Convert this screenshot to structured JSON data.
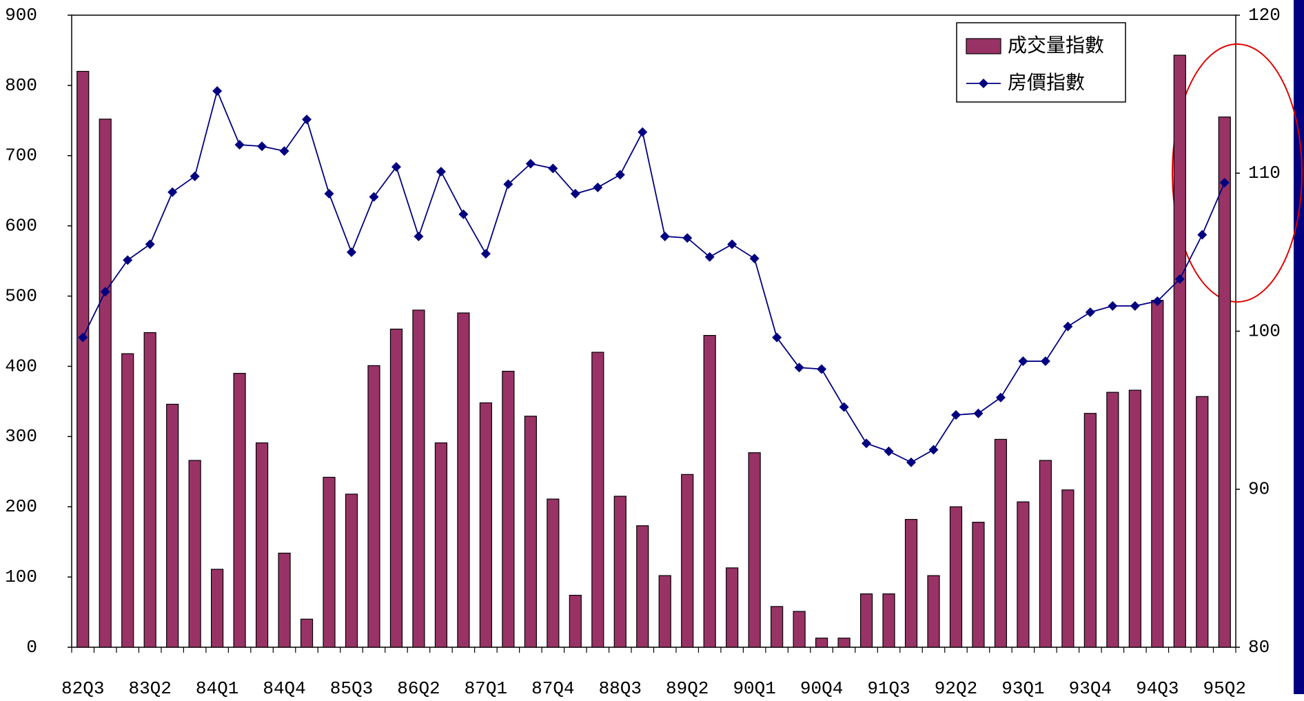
{
  "chart_data": {
    "type": "bar",
    "categories": [
      "82Q3",
      null,
      null,
      "83Q2",
      null,
      null,
      "84Q1",
      null,
      null,
      "84Q4",
      null,
      null,
      "85Q3",
      null,
      null,
      "86Q2",
      null,
      null,
      "87Q1",
      null,
      null,
      "87Q4",
      null,
      null,
      "88Q3",
      null,
      null,
      "89Q2",
      null,
      null,
      "90Q1",
      null,
      null,
      "90Q4",
      null,
      null,
      "91Q3",
      null,
      null,
      "92Q2",
      null,
      null,
      "93Q1",
      null,
      null,
      "93Q4",
      null,
      null,
      "94Q3",
      null,
      null,
      "95Q2"
    ],
    "series": [
      {
        "name": "成交量指數",
        "type": "bar",
        "color": "#993366",
        "values": [
          820,
          752,
          418,
          448,
          346,
          266,
          111,
          390,
          291,
          134,
          40,
          242,
          218,
          401,
          453,
          480,
          291,
          476,
          348,
          393,
          329,
          211,
          74,
          420,
          215,
          173,
          102,
          246,
          444,
          113,
          277,
          58,
          51,
          13,
          13,
          76,
          76,
          182,
          102,
          200,
          178,
          296,
          207,
          266,
          224,
          333,
          363,
          366,
          494,
          843,
          357,
          755
        ]
      },
      {
        "name": "房價指數",
        "type": "line",
        "color": "#000080",
        "axis": "y2",
        "values": [
          99.6,
          102.5,
          104.5,
          105.5,
          108.8,
          109.8,
          115.2,
          111.8,
          111.7,
          111.4,
          113.4,
          108.7,
          105.0,
          108.5,
          110.4,
          106.0,
          110.1,
          107.4,
          104.9,
          109.3,
          110.6,
          110.3,
          108.7,
          109.1,
          109.9,
          112.6,
          106.0,
          105.9,
          104.7,
          105.5,
          104.6,
          99.6,
          97.7,
          97.6,
          95.2,
          92.9,
          92.4,
          91.7,
          92.5,
          94.7,
          94.8,
          95.8,
          98.1,
          98.1,
          100.3,
          101.2,
          101.6,
          101.6,
          101.9,
          103.3,
          106.1,
          109.4
        ]
      }
    ],
    "ylim": [
      0,
      900
    ],
    "yticks": [
      0,
      100,
      200,
      300,
      400,
      500,
      600,
      700,
      800,
      900
    ],
    "y2lim": [
      80,
      120
    ],
    "y2ticks": [
      80,
      90,
      100,
      110,
      120
    ],
    "legend": "upper right"
  }
}
